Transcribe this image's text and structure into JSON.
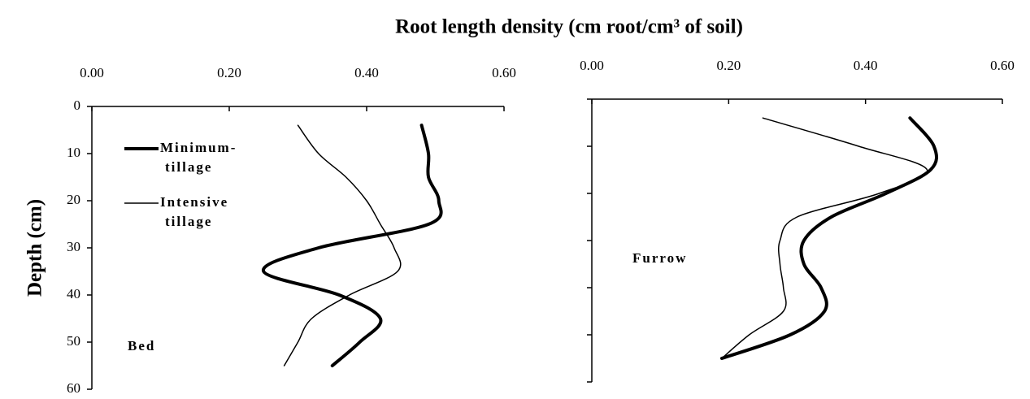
{
  "title": "Root length density (cm root/cm³ of soil)",
  "chart_data": [
    {
      "type": "line",
      "ylabel": "Depth (cm)",
      "annotation": "Bed",
      "legend": true,
      "ytick_labels": true,
      "y_inverted": true,
      "xlim": [
        0,
        0.6
      ],
      "xticks": [
        {
          "value": 0,
          "label": "0.00"
        },
        {
          "value": 0.2,
          "label": "0.20"
        },
        {
          "value": 0.4,
          "label": "0.40"
        },
        {
          "value": 0.6,
          "label": "0.60"
        }
      ],
      "ylim": [
        0,
        60
      ],
      "yticks": [
        0,
        10,
        20,
        30,
        40,
        50,
        60
      ],
      "y": [
        4,
        10,
        15,
        20,
        25,
        30,
        35,
        40,
        45,
        50,
        55
      ],
      "series": [
        {
          "name": "Minimum-tillage",
          "color": "#000000",
          "width": 4,
          "values": [
            0.48,
            0.49,
            0.49,
            0.505,
            0.49,
            0.33,
            0.25,
            0.36,
            0.42,
            0.39,
            0.35
          ]
        },
        {
          "name": "Intensive tillage",
          "color": "#000000",
          "width": 1.5,
          "values": [
            0.3,
            0.33,
            0.37,
            0.4,
            0.42,
            0.44,
            0.445,
            0.375,
            0.32,
            0.3,
            0.28
          ]
        }
      ]
    },
    {
      "type": "line",
      "annotation": "Furrow",
      "legend": false,
      "ytick_labels": false,
      "y_inverted": true,
      "xlim": [
        0,
        0.6
      ],
      "xticks": [
        {
          "value": 0,
          "label": "0.00"
        },
        {
          "value": 0.2,
          "label": "0.20"
        },
        {
          "value": 0.4,
          "label": "0.40"
        },
        {
          "value": 0.6,
          "label": "0.60"
        }
      ],
      "ylim": [
        0,
        60
      ],
      "yticks": [
        0,
        10,
        20,
        30,
        40,
        50,
        60
      ],
      "y": [
        4,
        10,
        15,
        20,
        25,
        30,
        35,
        40,
        45,
        50,
        55
      ],
      "series": [
        {
          "name": "Minimum-tillage",
          "color": "#000000",
          "width": 4,
          "values": [
            0.465,
            0.5,
            0.495,
            0.43,
            0.35,
            0.31,
            0.31,
            0.335,
            0.34,
            0.29,
            0.19
          ]
        },
        {
          "name": "Intensive tillage",
          "color": "#000000",
          "width": 1.5,
          "values": [
            0.25,
            0.39,
            0.49,
            0.42,
            0.3,
            0.275,
            0.275,
            0.28,
            0.28,
            0.23,
            0.19
          ]
        }
      ]
    }
  ]
}
